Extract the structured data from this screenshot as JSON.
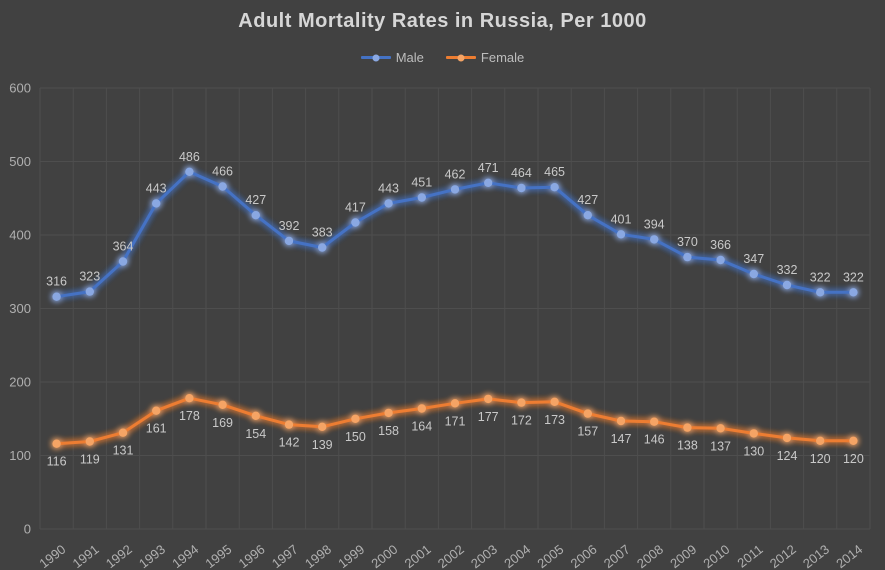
{
  "title": "Adult Mortality Rates in Russia, Per 1000",
  "legend": {
    "position": "top"
  },
  "colors": {
    "background": "#414141",
    "gridline": "#4e4e4e",
    "title_text": "#d6d6d6",
    "axis_text": "#b0b0b0",
    "data_label_text": "#c9c9c9"
  },
  "chart_data": {
    "type": "line",
    "title": "Adult Mortality Rates in Russia, Per 1000",
    "xlabel": "",
    "ylabel": "",
    "ylim": [
      0,
      600
    ],
    "ytick_interval": 100,
    "yticks": [
      "0",
      "100",
      "200",
      "300",
      "400",
      "500",
      "600"
    ],
    "grid": true,
    "legend_position": "top",
    "data_labels": true,
    "categories": [
      "1990",
      "1991",
      "1992",
      "1993",
      "1994",
      "1995",
      "1996",
      "1997",
      "1998",
      "1999",
      "2000",
      "2001",
      "2002",
      "2003",
      "2004",
      "2005",
      "2006",
      "2007",
      "2008",
      "2009",
      "2010",
      "2011",
      "2012",
      "2013",
      "2014"
    ],
    "series": [
      {
        "name": "Male",
        "color": "#4472c4",
        "marker_color": "#8aa8e2",
        "label_position": "above",
        "values": [
          316,
          323,
          364,
          443,
          486,
          466,
          427,
          392,
          383,
          417,
          443,
          451,
          462,
          471,
          464,
          465,
          427,
          401,
          394,
          370,
          366,
          347,
          332,
          322,
          322
        ]
      },
      {
        "name": "Female",
        "color": "#ed7d31",
        "marker_color": "#f5a465",
        "label_position": "below",
        "values": [
          116,
          119,
          131,
          161,
          178,
          169,
          154,
          142,
          139,
          150,
          158,
          164,
          171,
          177,
          172,
          173,
          157,
          147,
          146,
          138,
          137,
          130,
          124,
          120,
          120
        ]
      }
    ]
  }
}
